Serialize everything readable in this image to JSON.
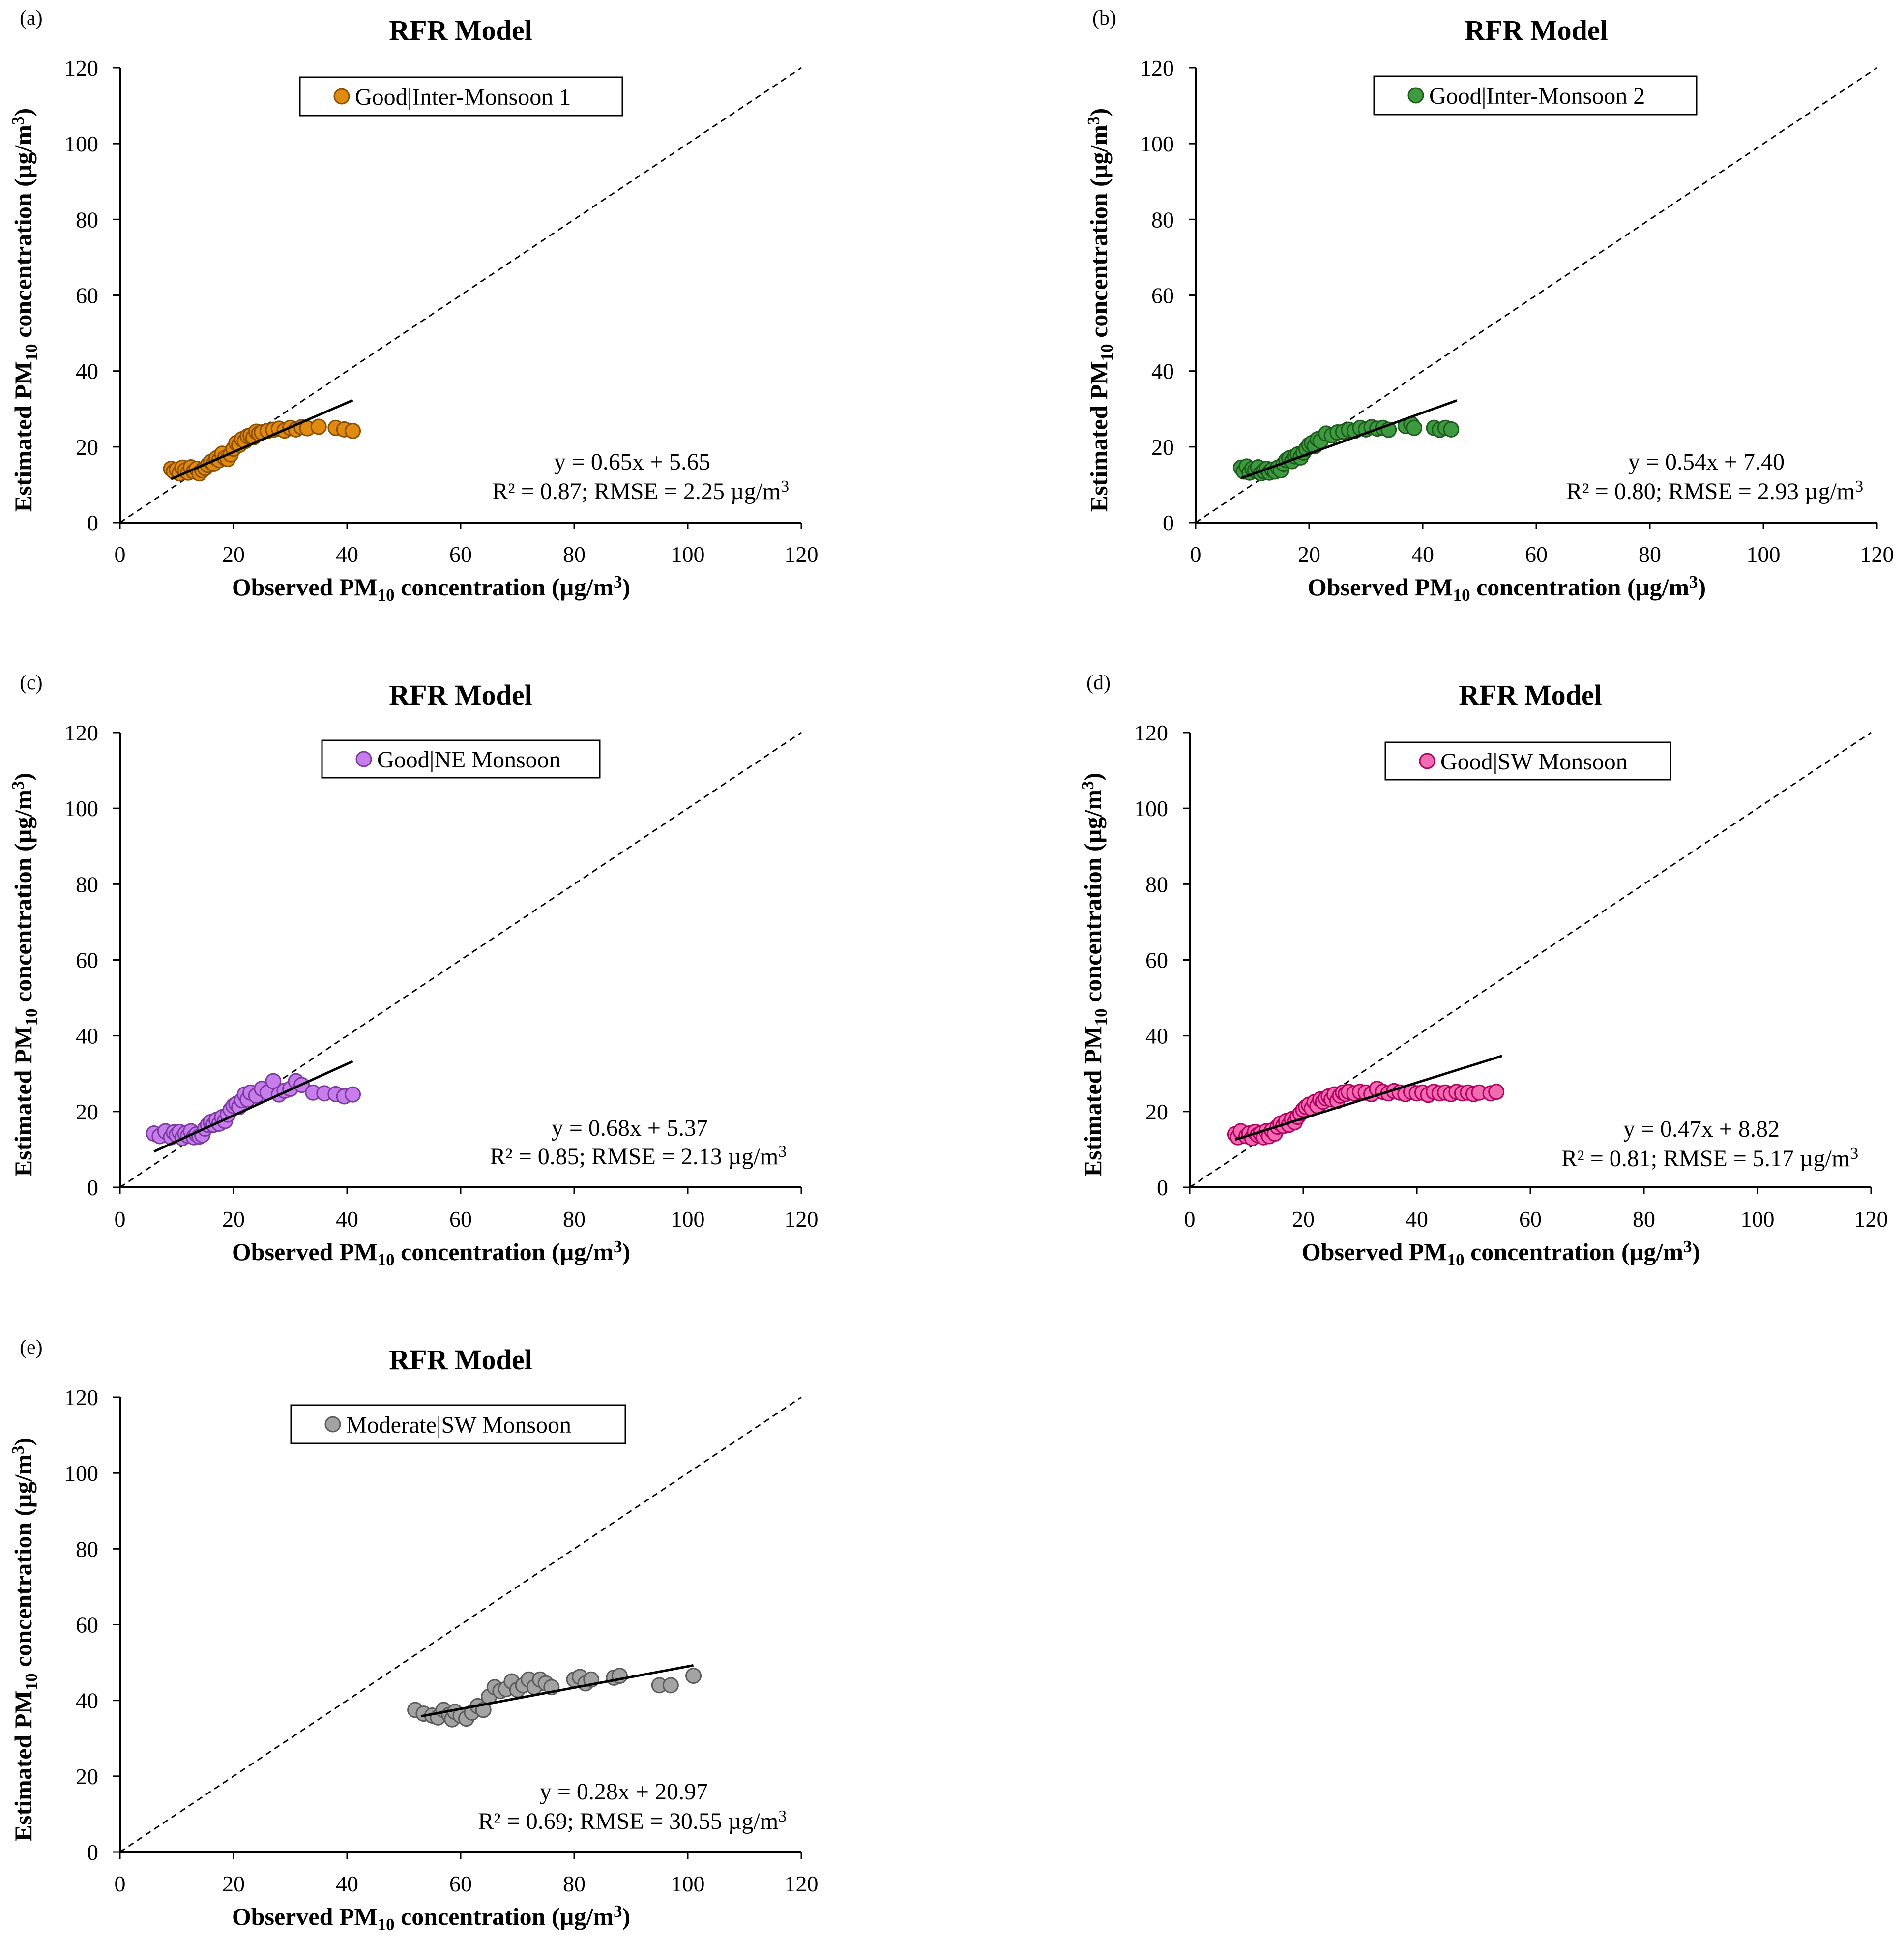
{
  "chart_data": [
    {
      "type": "scatter",
      "panel_label": "(a)",
      "title": "RFR Model",
      "xlabel": {
        "pre": "Observed PM",
        "sub": "10",
        "post": " concentration (µg/m",
        "sup": "3",
        "end": ")"
      },
      "ylabel": {
        "pre": "Estimated PM",
        "sub": "10",
        "post": " concentration (µg/m",
        "sup": "3",
        "end": ")"
      },
      "xlim": [
        0,
        120
      ],
      "ylim": [
        0,
        120
      ],
      "xticks": [
        0,
        20,
        40,
        60,
        80,
        100,
        120
      ],
      "yticks": [
        0,
        20,
        40,
        60,
        80,
        100,
        120
      ],
      "legend": "Good|Inter-Monsoon 1",
      "series_color": "#E08A12",
      "series_edge": "#8A4E00",
      "fit": {
        "slope": 0.65,
        "intercept": 5.65,
        "x_range": [
          9,
          41
        ]
      },
      "equation": "y = 0.65x + 5.65",
      "stats": {
        "pre": "R² = 0.87; RMSE = 2.25 µg/m",
        "sup": "3"
      },
      "identity_line": true,
      "points": [
        [
          9,
          14.2
        ],
        [
          9.5,
          13.5
        ],
        [
          10,
          14
        ],
        [
          10.5,
          13
        ],
        [
          11,
          14.5
        ],
        [
          11.5,
          13.8
        ],
        [
          12,
          13.2
        ],
        [
          12.5,
          14.6
        ],
        [
          13,
          13.5
        ],
        [
          13.5,
          14.2
        ],
        [
          14,
          13
        ],
        [
          14.5,
          13.8
        ],
        [
          15,
          14.4
        ],
        [
          15.5,
          15.2
        ],
        [
          16,
          16
        ],
        [
          16.5,
          15.5
        ],
        [
          17,
          17
        ],
        [
          17.5,
          16.5
        ],
        [
          18,
          18.2
        ],
        [
          18.5,
          17
        ],
        [
          19,
          16.8
        ],
        [
          19.5,
          18
        ],
        [
          20,
          19.5
        ],
        [
          20.5,
          21
        ],
        [
          21,
          20.5
        ],
        [
          21.5,
          22
        ],
        [
          22,
          21.5
        ],
        [
          22.5,
          22.8
        ],
        [
          23,
          23
        ],
        [
          23.5,
          22.5
        ],
        [
          24,
          24
        ],
        [
          24.5,
          23.5
        ],
        [
          25,
          23.8
        ],
        [
          26,
          24.2
        ],
        [
          27,
          24.5
        ],
        [
          28,
          24.8
        ],
        [
          29,
          24.3
        ],
        [
          30,
          25
        ],
        [
          31,
          24.6
        ],
        [
          32,
          25.2
        ],
        [
          33,
          24.9
        ],
        [
          35,
          25.3
        ],
        [
          38,
          25
        ],
        [
          39.5,
          24.6
        ],
        [
          41,
          24.2
        ]
      ]
    },
    {
      "type": "scatter",
      "panel_label": "(b)",
      "title": "RFR Model",
      "xlabel": {
        "pre": "Observed PM",
        "sub": "10",
        "post": " concentration (µg/m",
        "sup": "3",
        "end": ")"
      },
      "ylabel": {
        "pre": "Estimated PM",
        "sub": "10",
        "post": " concentration (µg/m",
        "sup": "3",
        "end": ")"
      },
      "xlim": [
        0,
        120
      ],
      "ylim": [
        0,
        120
      ],
      "xticks": [
        0,
        20,
        40,
        60,
        80,
        100,
        120
      ],
      "yticks": [
        0,
        20,
        40,
        60,
        80,
        100,
        120
      ],
      "legend": "Good|Inter-Monsoon 2",
      "series_color": "#3E9A3E",
      "series_edge": "#1D5A1D",
      "fit": {
        "slope": 0.54,
        "intercept": 7.4,
        "x_range": [
          8,
          46
        ]
      },
      "equation": "y = 0.54x + 7.40",
      "stats": {
        "pre": "R² = 0.80; RMSE = 2.93 µg/m",
        "sup": "3"
      },
      "identity_line": true,
      "points": [
        [
          8,
          14.5
        ],
        [
          8.5,
          13.5
        ],
        [
          9,
          14.8
        ],
        [
          9.5,
          13.2
        ],
        [
          10,
          14.2
        ],
        [
          10.5,
          13.8
        ],
        [
          11,
          14.6
        ],
        [
          11.5,
          13
        ],
        [
          12,
          13.6
        ],
        [
          12.5,
          14.2
        ],
        [
          13,
          13.2
        ],
        [
          13.5,
          14
        ],
        [
          14,
          13.5
        ],
        [
          14.5,
          14.5
        ],
        [
          15,
          13.8
        ],
        [
          15.5,
          15.5
        ],
        [
          16,
          16.5
        ],
        [
          16.5,
          17
        ],
        [
          17,
          16.2
        ],
        [
          17.5,
          17.5
        ],
        [
          18,
          18
        ],
        [
          18.5,
          17.2
        ],
        [
          19,
          18.5
        ],
        [
          19.5,
          19.5
        ],
        [
          20,
          20.5
        ],
        [
          20.5,
          21
        ],
        [
          21,
          20.2
        ],
        [
          21.5,
          22
        ],
        [
          22,
          21.5
        ],
        [
          23,
          23.5
        ],
        [
          24,
          23
        ],
        [
          25,
          23.8
        ],
        [
          26,
          24
        ],
        [
          27,
          24.5
        ],
        [
          28,
          24.2
        ],
        [
          29,
          25
        ],
        [
          30,
          24.6
        ],
        [
          31,
          25.2
        ],
        [
          32,
          24.8
        ],
        [
          33,
          25
        ],
        [
          34,
          24.5
        ],
        [
          37,
          25.5
        ],
        [
          38,
          26
        ],
        [
          38.5,
          25
        ],
        [
          42,
          25
        ],
        [
          43,
          24.5
        ],
        [
          44,
          25
        ],
        [
          45,
          24.6
        ]
      ]
    },
    {
      "type": "scatter",
      "panel_label": "(c)",
      "title": "RFR Model",
      "xlabel": {
        "pre": "Observed PM",
        "sub": "10",
        "post": " concentration (µg/m",
        "sup": "3",
        "end": ")"
      },
      "ylabel": {
        "pre": "Estimated PM",
        "sub": "10",
        "post": " concentration (µg/m",
        "sup": "3",
        "end": ")"
      },
      "xlim": [
        0,
        120
      ],
      "ylim": [
        0,
        120
      ],
      "xticks": [
        0,
        20,
        40,
        60,
        80,
        100,
        120
      ],
      "yticks": [
        0,
        20,
        40,
        60,
        80,
        100,
        120
      ],
      "legend": "Good|NE Monsoon",
      "series_color": "#C77DEB",
      "series_edge": "#7A3AA0",
      "fit": {
        "slope": 0.68,
        "intercept": 5.37,
        "x_range": [
          6,
          41
        ]
      },
      "equation": "y = 0.68x + 5.37",
      "stats": {
        "pre": "R² = 0.85; RMSE = 2.13 µg/m",
        "sup": "3"
      },
      "identity_line": true,
      "points": [
        [
          6,
          14.2
        ],
        [
          7,
          13.5
        ],
        [
          8,
          14.8
        ],
        [
          9,
          13.2
        ],
        [
          9.5,
          14.5
        ],
        [
          10,
          13.8
        ],
        [
          10.5,
          14.6
        ],
        [
          11,
          13
        ],
        [
          11.5,
          14.2
        ],
        [
          12,
          13.6
        ],
        [
          12.5,
          14.8
        ],
        [
          13,
          13.2
        ],
        [
          13.5,
          14
        ],
        [
          14,
          13.4
        ],
        [
          14.5,
          13.8
        ],
        [
          15,
          15.5
        ],
        [
          15.5,
          16.5
        ],
        [
          16,
          17.2
        ],
        [
          16.5,
          16.5
        ],
        [
          17,
          17.8
        ],
        [
          17.5,
          16.8
        ],
        [
          18,
          18.5
        ],
        [
          18.5,
          17.5
        ],
        [
          19,
          19.2
        ],
        [
          19.5,
          20.5
        ],
        [
          20,
          21.5
        ],
        [
          20.5,
          22
        ],
        [
          21,
          21.2
        ],
        [
          21.5,
          23
        ],
        [
          22,
          24.5
        ],
        [
          22.5,
          23.2
        ],
        [
          23,
          25
        ],
        [
          24,
          24.2
        ],
        [
          25,
          26
        ],
        [
          26,
          25
        ],
        [
          27,
          28
        ],
        [
          28,
          24.5
        ],
        [
          29,
          25.5
        ],
        [
          30,
          26
        ],
        [
          31,
          28
        ],
        [
          32,
          27
        ],
        [
          34,
          25
        ],
        [
          36,
          24.8
        ],
        [
          38,
          24.6
        ],
        [
          39.5,
          24
        ],
        [
          41,
          24.5
        ]
      ]
    },
    {
      "type": "scatter",
      "panel_label": "(d)",
      "title": "RFR Model",
      "xlabel": {
        "pre": "Observed PM",
        "sub": "10",
        "post": " concentration (µg/m",
        "sup": "3",
        "end": ")"
      },
      "ylabel": {
        "pre": "Estimated PM",
        "sub": "10",
        "post": " concentration (µg/m",
        "sup": "3",
        "end": ")"
      },
      "xlim": [
        0,
        120
      ],
      "ylim": [
        0,
        120
      ],
      "xticks": [
        0,
        20,
        40,
        60,
        80,
        100,
        120
      ],
      "yticks": [
        0,
        20,
        40,
        60,
        80,
        100,
        120
      ],
      "legend": "Good|SW Monsoon",
      "series_color": "#F06BB0",
      "series_edge": "#B00060",
      "fit": {
        "slope": 0.47,
        "intercept": 8.82,
        "x_range": [
          8,
          55
        ]
      },
      "equation": "y = 0.47x + 8.82",
      "stats": {
        "pre": "R² = 0.81; RMSE = 5.17 µg/m",
        "sup": "3"
      },
      "identity_line": true,
      "points": [
        [
          8,
          14
        ],
        [
          8.5,
          13.2
        ],
        [
          9,
          14.8
        ],
        [
          10,
          13.5
        ],
        [
          10.5,
          14.2
        ],
        [
          11,
          13
        ],
        [
          11.5,
          14.6
        ],
        [
          12,
          13.8
        ],
        [
          12.5,
          14.2
        ],
        [
          13,
          13.2
        ],
        [
          13.5,
          14.8
        ],
        [
          14,
          13.5
        ],
        [
          14.5,
          15
        ],
        [
          15,
          14.2
        ],
        [
          15.5,
          16
        ],
        [
          16,
          16.8
        ],
        [
          16.5,
          16.2
        ],
        [
          17,
          17.5
        ],
        [
          17.5,
          16.5
        ],
        [
          18,
          18
        ],
        [
          18.5,
          17.2
        ],
        [
          19,
          18.6
        ],
        [
          19.5,
          19.5
        ],
        [
          20,
          20.5
        ],
        [
          20.5,
          21.2
        ],
        [
          21,
          21.8
        ],
        [
          21.5,
          20.8
        ],
        [
          22,
          22.5
        ],
        [
          22.5,
          21.5
        ],
        [
          23,
          23.2
        ],
        [
          23.5,
          22.6
        ],
        [
          24,
          23.5
        ],
        [
          24.5,
          24
        ],
        [
          25,
          23.2
        ],
        [
          25.5,
          24.5
        ],
        [
          26,
          22.8
        ],
        [
          26.5,
          24.2
        ],
        [
          27,
          25
        ],
        [
          27.5,
          24.6
        ],
        [
          28,
          25.2
        ],
        [
          29,
          24.8
        ],
        [
          30,
          25.2
        ],
        [
          31,
          25
        ],
        [
          32,
          24.6
        ],
        [
          33,
          26
        ],
        [
          34,
          25.2
        ],
        [
          35,
          24.8
        ],
        [
          36,
          25.4
        ],
        [
          37,
          25
        ],
        [
          38,
          24.6
        ],
        [
          39,
          25.2
        ],
        [
          40,
          24.8
        ],
        [
          41,
          25
        ],
        [
          42,
          24.4
        ],
        [
          43,
          25.2
        ],
        [
          44,
          24.8
        ],
        [
          45,
          25
        ],
        [
          46,
          24.6
        ],
        [
          47,
          25.2
        ],
        [
          48,
          24.8
        ],
        [
          49,
          25
        ],
        [
          50,
          24.6
        ],
        [
          51,
          25
        ],
        [
          53,
          24.8
        ],
        [
          54,
          25.2
        ]
      ]
    },
    {
      "type": "scatter",
      "panel_label": "(e)",
      "title": "RFR Model",
      "xlabel": {
        "pre": "Observed PM",
        "sub": "10",
        "post": " concentration (µg/m",
        "sup": "3",
        "end": ")"
      },
      "ylabel": {
        "pre": "Estimated PM",
        "sub": "10",
        "post": " concentration (µg/m",
        "sup": "3",
        "end": ")"
      },
      "xlim": [
        0,
        120
      ],
      "ylim": [
        0,
        120
      ],
      "xticks": [
        0,
        20,
        40,
        60,
        80,
        100,
        120
      ],
      "yticks": [
        0,
        20,
        40,
        60,
        80,
        100,
        120
      ],
      "legend": "Moderate|SW Monsoon",
      "series_color": "#A3A3A3",
      "series_edge": "#5A5A5A",
      "fit": {
        "slope": 0.28,
        "intercept": 20.97,
        "x_range": [
          53,
          101
        ]
      },
      "equation": "y = 0.28x + 20.97",
      "stats": {
        "pre": "R² = 0.69; RMSE = 30.55 µg/m",
        "sup": "3"
      },
      "identity_line": true,
      "points": [
        [
          52,
          37.5
        ],
        [
          53.5,
          36.5
        ],
        [
          55,
          36
        ],
        [
          56,
          35.5
        ],
        [
          57,
          37.5
        ],
        [
          58,
          36.2
        ],
        [
          58.5,
          35
        ],
        [
          59,
          37
        ],
        [
          60,
          36
        ],
        [
          61,
          35.2
        ],
        [
          62,
          36.8
        ],
        [
          63,
          38.5
        ],
        [
          64,
          37.5
        ],
        [
          65,
          41
        ],
        [
          66,
          43.5
        ],
        [
          67,
          42.5
        ],
        [
          68,
          43
        ],
        [
          69,
          45
        ],
        [
          70,
          42.8
        ],
        [
          71,
          44
        ],
        [
          72,
          45.5
        ],
        [
          73,
          43.5
        ],
        [
          74,
          45.5
        ],
        [
          75,
          44.5
        ],
        [
          76,
          43.5
        ],
        [
          80,
          45.5
        ],
        [
          81,
          46.2
        ],
        [
          82,
          44.5
        ],
        [
          83,
          45.5
        ],
        [
          87,
          46
        ],
        [
          88,
          46.5
        ],
        [
          95,
          44
        ],
        [
          97,
          44
        ],
        [
          101,
          46.5
        ]
      ]
    }
  ]
}
